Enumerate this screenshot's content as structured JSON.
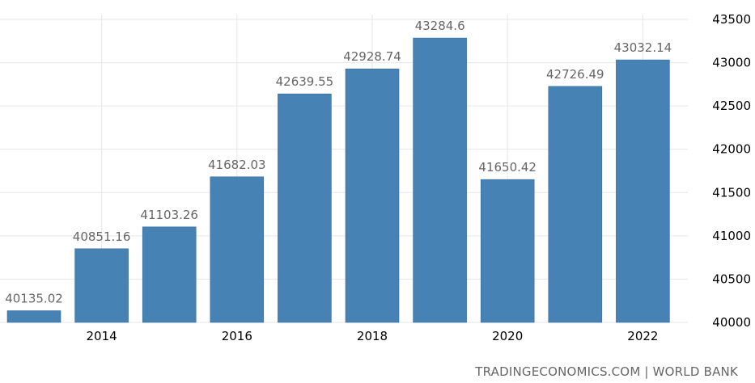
{
  "chart_data": {
    "type": "bar",
    "categories": [
      "2013",
      "2014",
      "2015",
      "2016",
      "2017",
      "2018",
      "2019",
      "2020",
      "2021",
      "2022"
    ],
    "values": [
      40135.02,
      40851.16,
      41103.26,
      41682.03,
      42639.55,
      42928.74,
      43284.6,
      41650.42,
      42726.49,
      43032.14
    ],
    "data_labels": [
      "40135.02",
      "40851.16",
      "41103.26",
      "41682.03",
      "42639.55",
      "42928.74",
      "43284.6",
      "41650.42",
      "42726.49",
      "43032.14"
    ],
    "x_tick_labels": [
      "2014",
      "2016",
      "2018",
      "2020",
      "2022"
    ],
    "y_ticks": [
      "40000",
      "40500",
      "41000",
      "41500",
      "42000",
      "42500",
      "43000",
      "43500"
    ],
    "ylim": [
      40000,
      43500
    ],
    "yaxis_position": "right",
    "grid": true,
    "bar_color": "#4682b4",
    "title": "",
    "xlabel": "",
    "ylabel": ""
  },
  "source": "TRADINGECONOMICS.COM | WORLD BANK"
}
